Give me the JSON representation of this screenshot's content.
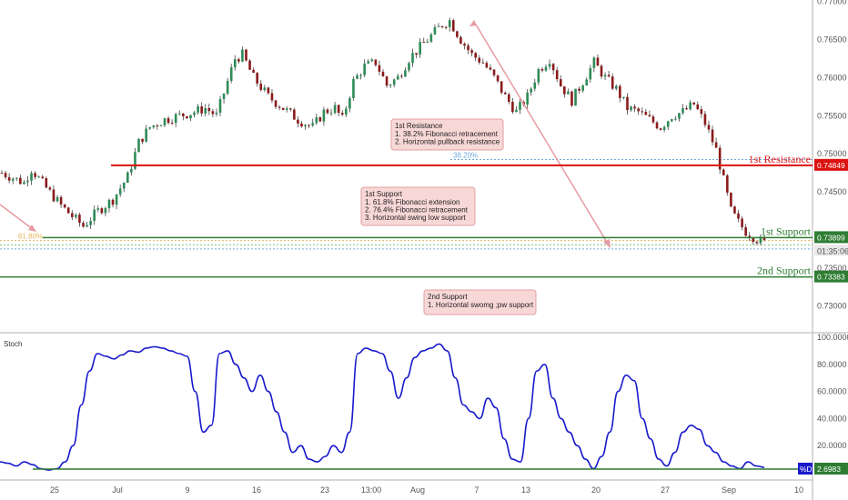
{
  "chart_data": [
    {
      "type": "candlestick",
      "ylim": [
        0.7265,
        0.7702
      ],
      "y_ticks": [
        "0.77000",
        "0.76500",
        "0.76000",
        "0.75500",
        "0.75000",
        "0.74500",
        "0.73500",
        "0.73000"
      ],
      "x_ticks": [
        "25",
        "Jul",
        "9",
        "16",
        "23",
        "13:00",
        "Aug",
        "7",
        "13",
        "20",
        "27",
        "Sep",
        "10"
      ],
      "price_path": [
        [
          0.7475,
          0
        ],
        [
          0.7462,
          6
        ],
        [
          0.748,
          8
        ],
        [
          0.7455,
          12
        ],
        [
          0.7432,
          16
        ],
        [
          0.7418,
          19
        ],
        [
          0.7405,
          22
        ],
        [
          0.7425,
          26
        ],
        [
          0.744,
          30
        ],
        [
          0.747,
          34
        ],
        [
          0.7515,
          37
        ],
        [
          0.7535,
          40
        ],
        [
          0.7545,
          44
        ],
        [
          0.755,
          48
        ],
        [
          0.7555,
          52
        ],
        [
          0.756,
          55
        ],
        [
          0.755,
          58
        ],
        [
          0.758,
          60
        ],
        [
          0.7625,
          63
        ],
        [
          0.763,
          65
        ],
        [
          0.76,
          68
        ],
        [
          0.7575,
          72
        ],
        [
          0.756,
          76
        ],
        [
          0.7545,
          80
        ],
        [
          0.7535,
          84
        ],
        [
          0.7555,
          87
        ],
        [
          0.756,
          90
        ],
        [
          0.7545,
          92
        ],
        [
          0.7595,
          95
        ],
        [
          0.7615,
          98
        ],
        [
          0.762,
          101
        ],
        [
          0.759,
          104
        ],
        [
          0.76,
          107
        ],
        [
          0.7625,
          110
        ],
        [
          0.764,
          113
        ],
        [
          0.7655,
          116
        ],
        [
          0.767,
          119
        ],
        [
          0.7675,
          121
        ],
        [
          0.765,
          124
        ],
        [
          0.763,
          127
        ],
        [
          0.762,
          130
        ],
        [
          0.76,
          133
        ],
        [
          0.7575,
          136
        ],
        [
          0.7555,
          139
        ],
        [
          0.7575,
          142
        ],
        [
          0.761,
          145
        ],
        [
          0.7625,
          148
        ],
        [
          0.759,
          151
        ],
        [
          0.757,
          154
        ],
        [
          0.7595,
          157
        ],
        [
          0.762,
          160
        ],
        [
          0.76,
          163
        ],
        [
          0.7585,
          166
        ],
        [
          0.756,
          169
        ],
        [
          0.7555,
          172
        ],
        [
          0.7545,
          175
        ],
        [
          0.7535,
          178
        ],
        [
          0.755,
          181
        ],
        [
          0.7555,
          184
        ],
        [
          0.7565,
          187
        ],
        [
          0.754,
          190
        ],
        [
          0.7505,
          193
        ],
        [
          0.7465,
          195
        ],
        [
          0.7425,
          197
        ],
        [
          0.741,
          199
        ],
        [
          0.7398,
          201
        ],
        [
          0.7388,
          204
        ],
        [
          0.7383,
          206
        ]
      ],
      "levels": [
        {
          "label": "1st Resistance",
          "value": 0.74849,
          "badge": "0.74849",
          "color": "#dd1111"
        },
        {
          "label": "1st Support",
          "value": 0.73899,
          "badge": "0.73899",
          "color": "#2e7d32"
        },
        {
          "label": "2nd Support",
          "value": 0.73383,
          "badge": "0.73383",
          "color": "#2e7d32"
        }
      ],
      "fib_levels": [
        {
          "label": "38.20%",
          "value": 0.74925,
          "color": "#6fa8dc"
        },
        {
          "label": "61.80%",
          "value": 0.7386,
          "color": "#e6b85c"
        },
        {
          "label": "",
          "value": 0.73805,
          "color": "#7cbf7c"
        },
        {
          "label": "",
          "value": 0.7375,
          "color": "#6fa8dc"
        }
      ],
      "countdown": "01:35:06",
      "annotations": [
        {
          "title": "1st Resistance",
          "lines": [
            "1. 38.2% Fibonacci retracement",
            "2. Horizontal pullback resistance"
          ]
        },
        {
          "title": "1st Support",
          "lines": [
            "1. 61.8% Fibonacci extension",
            "2. 76.4% Fibonacci retracement",
            "3. Horizontal swing low support"
          ]
        },
        {
          "title": "2nd Support",
          "lines": [
            "1. Horizontal swomg ;pw support"
          ]
        }
      ]
    },
    {
      "type": "line",
      "title": "Stoch",
      "ylim": [
        0,
        100
      ],
      "y_ticks": [
        "100.0000",
        "80.0000",
        "60.0000",
        "40.0000",
        "20.0000"
      ],
      "series": [
        {
          "name": "%D",
          "color": "#1a1acc",
          "values": [
            8,
            7,
            5,
            8,
            6,
            3,
            2,
            3,
            8,
            20,
            50,
            75,
            88,
            86,
            84,
            87,
            90,
            89,
            92,
            93,
            92,
            90,
            88,
            86,
            60,
            30,
            35,
            88,
            90,
            80,
            70,
            60,
            72,
            60,
            45,
            30,
            15,
            20,
            10,
            8,
            12,
            20,
            15,
            30,
            88,
            92,
            90,
            88,
            75,
            55,
            70,
            85,
            90,
            92,
            95,
            90,
            70,
            50,
            45,
            40,
            55,
            48,
            25,
            10,
            8,
            40,
            75,
            80,
            55,
            40,
            30,
            20,
            10,
            3,
            12,
            30,
            60,
            72,
            68,
            40,
            25,
            10,
            5,
            15,
            30,
            35,
            32,
            20,
            15,
            8,
            5,
            3,
            8,
            5,
            4
          ]
        }
      ],
      "reference_line": 2.6983,
      "current_label": "2.6983"
    }
  ]
}
